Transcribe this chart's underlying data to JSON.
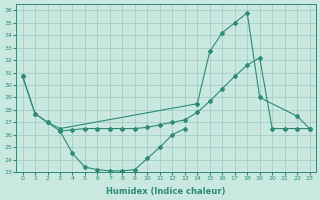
{
  "xlabel": "Humidex (Indice chaleur)",
  "xlim": [
    -0.5,
    23.5
  ],
  "ylim": [
    23,
    36.5
  ],
  "yticks": [
    23,
    24,
    25,
    26,
    27,
    28,
    29,
    30,
    31,
    32,
    33,
    34,
    35,
    36
  ],
  "xticks": [
    0,
    1,
    2,
    3,
    4,
    5,
    6,
    7,
    8,
    9,
    10,
    11,
    12,
    13,
    14,
    15,
    16,
    17,
    18,
    19,
    20,
    21,
    22,
    23
  ],
  "line_color": "#2e8b74",
  "bg_color": "#c8e8e0",
  "grid_color": "#a0c8c0",
  "lineA_x": [
    0,
    1,
    2,
    3,
    4,
    5,
    6,
    7,
    8,
    9,
    10,
    11,
    12,
    13
  ],
  "lineA_y": [
    30.7,
    27.7,
    27.0,
    26.3,
    24.5,
    23.4,
    23.2,
    23.1,
    23.1,
    23.2,
    24.1,
    25.0,
    26.0,
    26.5
  ],
  "lineB_x": [
    0,
    1,
    2,
    3,
    14,
    15,
    16,
    17,
    18,
    19,
    22,
    23
  ],
  "lineB_y": [
    30.7,
    27.7,
    27.0,
    26.5,
    28.5,
    32.7,
    34.2,
    35.0,
    35.8,
    29.0,
    27.5,
    26.5
  ],
  "lineC_x": [
    3,
    4,
    5,
    6,
    7,
    8,
    9,
    10,
    11,
    12,
    13,
    14,
    15,
    16,
    17,
    18,
    19,
    20,
    21,
    22,
    23
  ],
  "lineC_y": [
    26.3,
    26.4,
    26.5,
    26.5,
    26.5,
    26.5,
    26.5,
    26.6,
    26.8,
    27.0,
    27.2,
    27.8,
    28.7,
    29.7,
    30.7,
    31.6,
    32.2,
    26.5,
    26.5,
    26.5,
    26.5
  ]
}
